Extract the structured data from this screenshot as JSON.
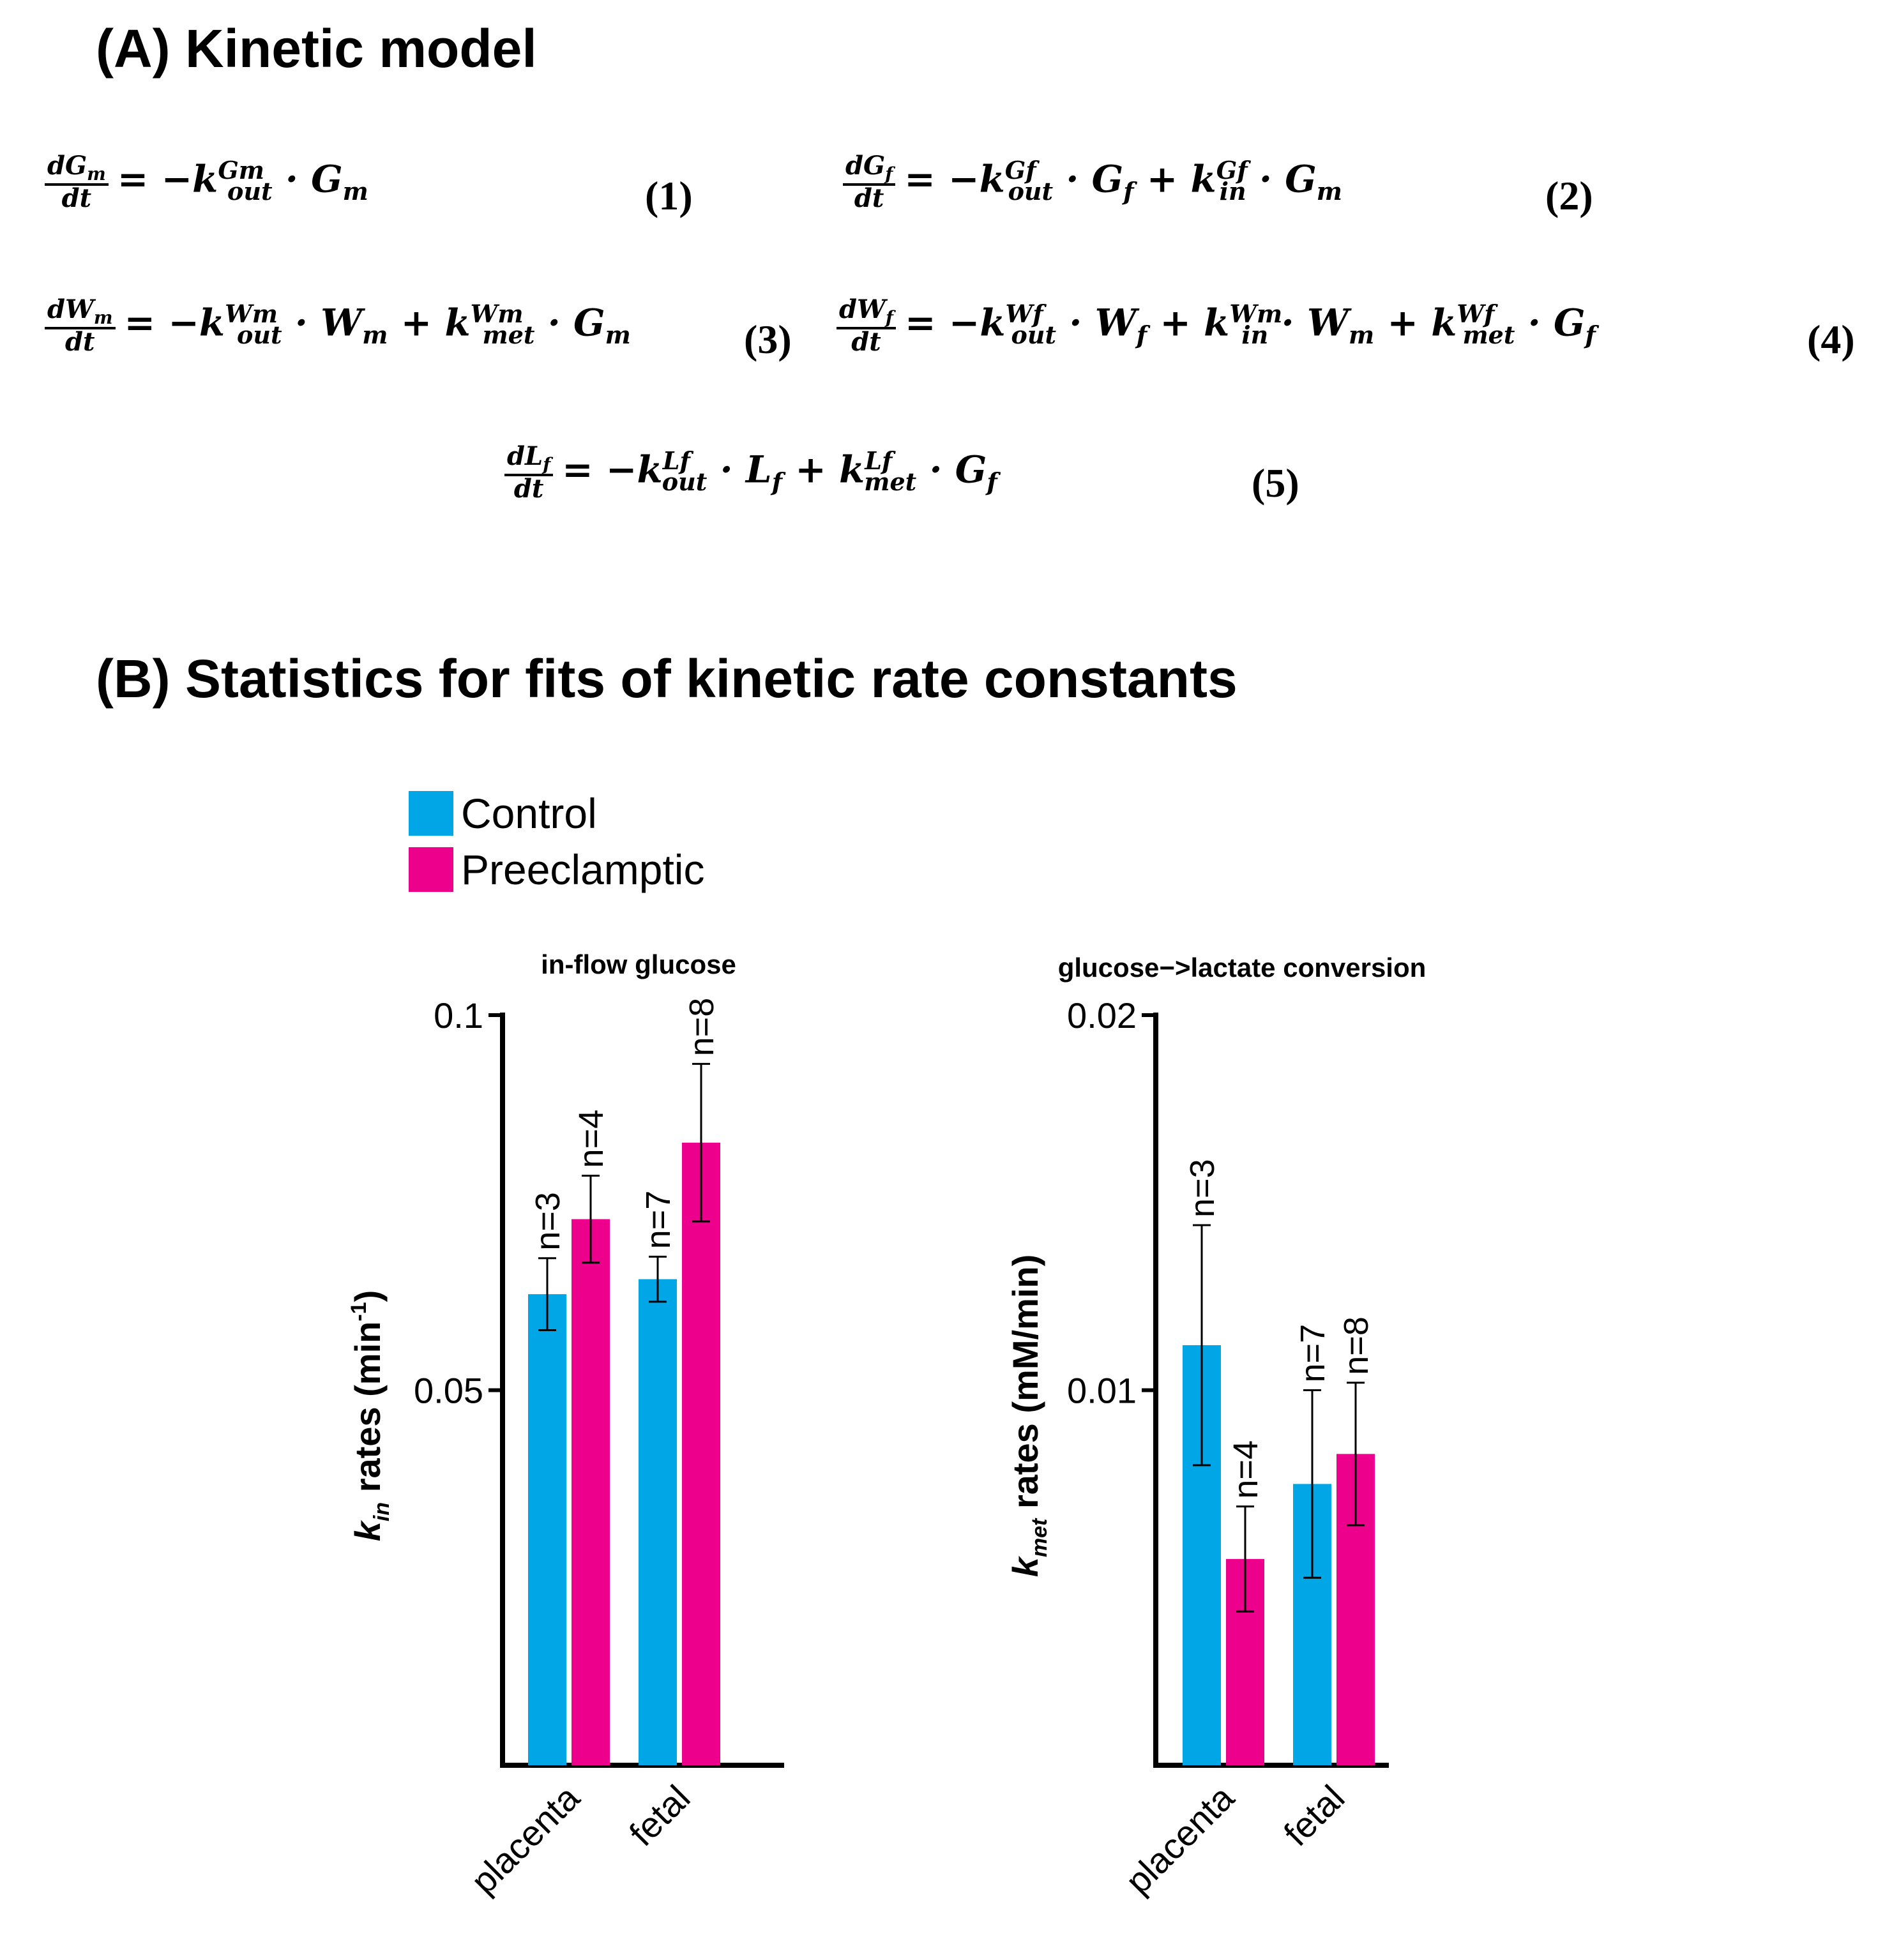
{
  "panel_a": {
    "heading": "(A) Kinetic model",
    "equations": [
      {
        "num": "(1)"
      },
      {
        "num": "(2)"
      },
      {
        "num": "(3)"
      },
      {
        "num": "(4)"
      },
      {
        "num": "(5)"
      }
    ]
  },
  "panel_b": {
    "heading": "(B) Statistics for fits of kinetic rate constants"
  },
  "legend": [
    {
      "label": "Control",
      "color": "#00a6e6"
    },
    {
      "label": "Preeclamptic",
      "color": "#ec008c"
    }
  ],
  "chart_data": [
    {
      "type": "bar",
      "title": "in-flow glucose",
      "ylabel_symbol": "k",
      "ylabel_sub": "in",
      "ylabel_text": " rates (min",
      "ylabel_sup": "-1",
      "ylabel_close": ")",
      "ylim": [
        0,
        0.1
      ],
      "yticks": [
        {
          "value": 0.05,
          "label": "0.05"
        },
        {
          "value": 0.1,
          "label": "0.1"
        }
      ],
      "categories": [
        "placenta",
        "fetal"
      ],
      "series": [
        {
          "name": "Control",
          "color": "#00a6e6",
          "values": [
            0.0628,
            0.0648
          ],
          "err_low": [
            0.058,
            0.0618
          ],
          "err_high": [
            0.0676,
            0.0678
          ],
          "n": [
            "n=3",
            "n=7"
          ]
        },
        {
          "name": "Preeclamptic",
          "color": "#ec008c",
          "values": [
            0.0728,
            0.083
          ],
          "err_low": [
            0.067,
            0.0725
          ],
          "err_high": [
            0.0786,
            0.0935
          ],
          "n": [
            "n=4",
            "n=8"
          ]
        }
      ]
    },
    {
      "type": "bar",
      "title": "glucose−>lactate conversion",
      "ylabel_symbol": "k",
      "ylabel_sub": "met",
      "ylabel_text": " rates (mM/min)",
      "ylabel_sup": "",
      "ylabel_close": "",
      "ylim": [
        0,
        0.02
      ],
      "yticks": [
        {
          "value": 0.01,
          "label": "0.01"
        },
        {
          "value": 0.02,
          "label": "0.02"
        }
      ],
      "categories": [
        "placenta",
        "fetal"
      ],
      "series": [
        {
          "name": "Control",
          "color": "#00a6e6",
          "values": [
            0.0112,
            0.0075
          ],
          "err_low": [
            0.008,
            0.005
          ],
          "err_high": [
            0.0144,
            0.01
          ],
          "n": [
            "n=3",
            "n=7"
          ]
        },
        {
          "name": "Preeclamptic",
          "color": "#ec008c",
          "values": [
            0.0055,
            0.0083
          ],
          "err_low": [
            0.0041,
            0.0064
          ],
          "err_high": [
            0.0069,
            0.0102
          ],
          "n": [
            "n=4",
            "n=8"
          ]
        }
      ]
    }
  ]
}
